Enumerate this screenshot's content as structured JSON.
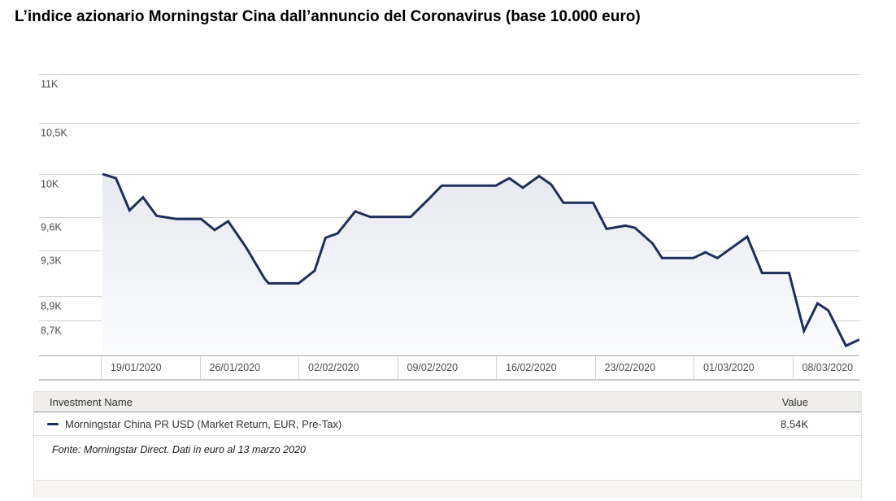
{
  "title": "L’indice azionario Morningstar Cina dall’annuncio del Coronavirus (base 10.000 euro)",
  "chart_data": {
    "type": "area",
    "title": "L’indice azionario Morningstar Cina dall’annuncio del Coronavirus (base 10.000 euro)",
    "ylabel": "",
    "xlabel": "",
    "y_scale": "log",
    "ylim": [
      8400,
      11000
    ],
    "grid": "horizontal",
    "legend_position": "table-below",
    "y_gridlines": [
      {
        "value": 11000,
        "label": "11K"
      },
      {
        "value": 10500,
        "label": "10,5K"
      },
      {
        "value": 10000,
        "label": "10K"
      },
      {
        "value": 9600,
        "label": "9,6K"
      },
      {
        "value": 9300,
        "label": "9,3K"
      },
      {
        "value": 8900,
        "label": "8,9K"
      },
      {
        "value": 8700,
        "label": "8,7K"
      }
    ],
    "x_labels": [
      "19/01/2020",
      "26/01/2020",
      "02/02/2020",
      "09/02/2020",
      "16/02/2020",
      "23/02/2020",
      "01/03/2020",
      "08/03/2020"
    ],
    "x_span_days": 56,
    "series": [
      {
        "name": "Morningstar China PR USD (Market Return, EUR, Pre-Tax)",
        "color": "#1e2e5c",
        "final_value_label": "8,54K",
        "points": [
          [
            0,
            10000
          ],
          [
            1,
            9960
          ],
          [
            2,
            9660
          ],
          [
            3,
            9780
          ],
          [
            4,
            9610
          ],
          [
            5,
            9590
          ],
          [
            5.5,
            9580
          ],
          [
            7.3,
            9580
          ],
          [
            8.3,
            9480
          ],
          [
            9.3,
            9560
          ],
          [
            10.6,
            9330
          ],
          [
            12,
            9050
          ],
          [
            12.3,
            9010
          ],
          [
            14.5,
            9010
          ],
          [
            15.7,
            9120
          ],
          [
            16.5,
            9410
          ],
          [
            17.4,
            9450
          ],
          [
            18.7,
            9650
          ],
          [
            19.8,
            9600
          ],
          [
            22.8,
            9600
          ],
          [
            24.1,
            9760
          ],
          [
            25.1,
            9890
          ],
          [
            29.1,
            9890
          ],
          [
            30.1,
            9960
          ],
          [
            31.1,
            9870
          ],
          [
            32.3,
            9980
          ],
          [
            33.2,
            9900
          ],
          [
            34.1,
            9730
          ],
          [
            36.3,
            9730
          ],
          [
            37.3,
            9490
          ],
          [
            38.7,
            9520
          ],
          [
            39.4,
            9500
          ],
          [
            40.7,
            9360
          ],
          [
            41.4,
            9230
          ],
          [
            43.7,
            9230
          ],
          [
            44.6,
            9280
          ],
          [
            45.5,
            9230
          ],
          [
            47.7,
            9420
          ],
          [
            48.8,
            9100
          ],
          [
            50.8,
            9100
          ],
          [
            51.9,
            8610
          ],
          [
            52.9,
            8840
          ],
          [
            53.7,
            8780
          ],
          [
            55,
            8490
          ],
          [
            56,
            8540
          ]
        ]
      }
    ]
  },
  "table": {
    "headers": {
      "name": "Investment Name",
      "value": "Value"
    },
    "rows": [
      {
        "name": "Morningstar China PR USD (Market Return, EUR, Pre-Tax)",
        "value": "8,54K",
        "swatch_color": "#1e2e5c"
      }
    ]
  },
  "footer": {
    "source": "Fonte: Morningstar Direct. Dati in euro al 13 marzo 2020"
  },
  "colors": {
    "line": "#1e2e5c",
    "area_top": "#e7e9f1",
    "area_bottom": "#fbfcfe",
    "gridline": "#d2d2d2",
    "axis_text": "#4d4d4d"
  }
}
